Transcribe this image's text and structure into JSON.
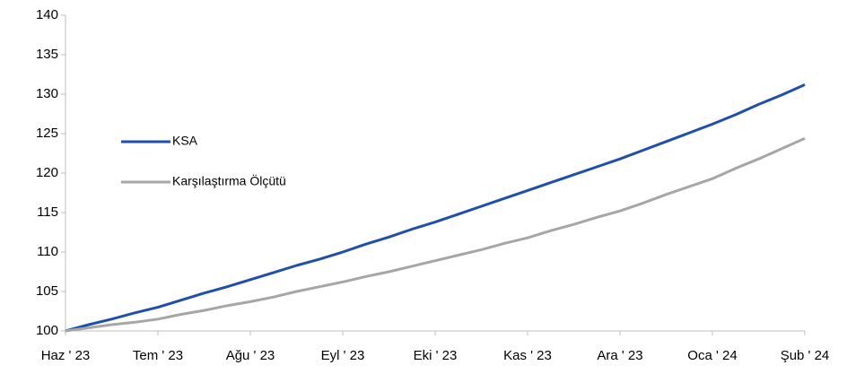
{
  "chart_data": {
    "type": "line",
    "categories": [
      "Haz ' 23",
      null,
      null,
      null,
      "Tem ' 23",
      null,
      null,
      null,
      "Ağu ' 23",
      null,
      null,
      null,
      "Eyl ' 23",
      null,
      null,
      null,
      "Eki ' 23",
      null,
      null,
      null,
      "Kas ' 23",
      null,
      null,
      null,
      "Ara ' 23",
      null,
      null,
      null,
      "Oca ' 24",
      null,
      null,
      null,
      "Şub ' 24"
    ],
    "series": [
      {
        "name": "KSA",
        "color": "#1f4fa8",
        "values": [
          100,
          100.8,
          101.5,
          102.3,
          103.0,
          103.9,
          104.8,
          105.6,
          106.5,
          107.4,
          108.3,
          109.1,
          110.0,
          111.0,
          111.9,
          112.9,
          113.8,
          114.8,
          115.8,
          116.8,
          117.8,
          118.8,
          119.8,
          120.8,
          121.8,
          122.9,
          124.0,
          125.1,
          126.2,
          127.4,
          128.7,
          129.9,
          131.2
        ]
      },
      {
        "name": "Karşılaştırma Ölçütü",
        "color": "#a6a6a6",
        "values": [
          100,
          100.4,
          100.8,
          101.1,
          101.5,
          102.1,
          102.6,
          103.2,
          103.7,
          104.3,
          105.0,
          105.6,
          106.2,
          106.9,
          107.5,
          108.2,
          108.9,
          109.6,
          110.3,
          111.1,
          111.8,
          112.7,
          113.5,
          114.4,
          115.2,
          116.2,
          117.3,
          118.3,
          119.3,
          120.6,
          121.8,
          123.1,
          124.4
        ]
      }
    ],
    "ylim": [
      100,
      140
    ],
    "yticks": [
      100,
      105,
      110,
      115,
      120,
      125,
      130,
      135,
      140
    ],
    "grid": false,
    "legend": "left"
  }
}
